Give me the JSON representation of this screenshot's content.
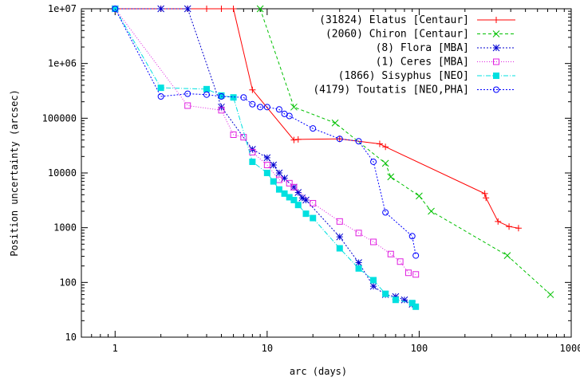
{
  "chart_data": {
    "type": "line",
    "title": "",
    "xlabel": "arc (days)",
    "ylabel": "Position uncertainty (arcsec)",
    "xscale": "log",
    "yscale": "log",
    "xlim": [
      0.6,
      1000
    ],
    "ylim": [
      10,
      10000000
    ],
    "grid": false,
    "legend_position": "top-right",
    "x_ticks": [
      {
        "value": 1,
        "label": "1"
      },
      {
        "value": 10,
        "label": "10"
      },
      {
        "value": 100,
        "label": "100"
      },
      {
        "value": 1000,
        "label": "1000"
      }
    ],
    "y_ticks": [
      {
        "value": 10,
        "label": "10"
      },
      {
        "value": 100,
        "label": "100"
      },
      {
        "value": 1000,
        "label": "1000"
      },
      {
        "value": 10000,
        "label": "10000"
      },
      {
        "value": 100000,
        "label": "100000"
      },
      {
        "value": 1000000,
        "label": "1e+06"
      },
      {
        "value": 10000000,
        "label": "1e+07"
      }
    ],
    "series": [
      {
        "name": "(31824) Elatus [Centaur]",
        "color": "#ff0000",
        "dash": "",
        "marker": "plus",
        "points": [
          [
            1,
            10000000
          ],
          [
            2,
            10000000
          ],
          [
            3,
            10000000
          ],
          [
            4,
            10000000
          ],
          [
            5,
            10000000
          ],
          [
            6,
            10000000
          ],
          [
            8,
            330000
          ],
          [
            15,
            40000
          ],
          [
            16,
            41000
          ],
          [
            30,
            42000
          ],
          [
            55,
            34000
          ],
          [
            60,
            30000
          ],
          [
            270,
            4200
          ],
          [
            275,
            3500
          ],
          [
            330,
            1300
          ],
          [
            390,
            1050
          ],
          [
            450,
            980
          ]
        ]
      },
      {
        "name": "(2060) Chiron [Centaur]",
        "color": "#00c000",
        "dash": "4,3",
        "marker": "cross",
        "points": [
          [
            9,
            10000000
          ],
          [
            15,
            160000
          ],
          [
            28,
            82000
          ],
          [
            60,
            15000
          ],
          [
            65,
            8500
          ],
          [
            100,
            3800
          ],
          [
            120,
            2000
          ],
          [
            380,
            310
          ],
          [
            730,
            60
          ]
        ]
      },
      {
        "name": "(8) Flora [MBA]",
        "color": "#0000d0",
        "dash": "2,2",
        "marker": "star",
        "points": [
          [
            1,
            10000000
          ],
          [
            2,
            10000000
          ],
          [
            3,
            10000000
          ],
          [
            5,
            160000
          ],
          [
            8,
            27000
          ],
          [
            10,
            19000
          ],
          [
            11,
            14000
          ],
          [
            12,
            10000
          ],
          [
            13,
            8000
          ],
          [
            15,
            5500
          ],
          [
            16,
            4400
          ],
          [
            17,
            3500
          ],
          [
            18,
            3200
          ],
          [
            30,
            680
          ],
          [
            40,
            230
          ],
          [
            50,
            85
          ],
          [
            60,
            60
          ],
          [
            70,
            55
          ],
          [
            80,
            48
          ],
          [
            90,
            40
          ]
        ]
      },
      {
        "name": "(1) Ceres [MBA]",
        "color": "#e020e0",
        "dash": "1,2",
        "marker": "box",
        "points": [
          [
            1,
            10000000
          ],
          [
            3,
            170000
          ],
          [
            5,
            140000
          ],
          [
            6,
            50000
          ],
          [
            7,
            45000
          ],
          [
            8,
            24000
          ],
          [
            10,
            14000
          ],
          [
            12,
            7500
          ],
          [
            14,
            6500
          ],
          [
            15,
            5500
          ],
          [
            20,
            2800
          ],
          [
            30,
            1300
          ],
          [
            40,
            800
          ],
          [
            50,
            550
          ],
          [
            65,
            330
          ],
          [
            75,
            240
          ],
          [
            85,
            150
          ],
          [
            95,
            140
          ]
        ]
      },
      {
        "name": "(1866) Sisyphus [NEO]",
        "color": "#00e0e0",
        "dash": "6,2,1,2",
        "marker": "filled-box",
        "points": [
          [
            1,
            10000000
          ],
          [
            2,
            360000
          ],
          [
            4,
            340000
          ],
          [
            5,
            260000
          ],
          [
            6,
            240000
          ],
          [
            8,
            16000
          ],
          [
            10,
            10000
          ],
          [
            11,
            7000
          ],
          [
            12,
            5000
          ],
          [
            13,
            4200
          ],
          [
            14,
            3600
          ],
          [
            15,
            3200
          ],
          [
            16,
            2600
          ],
          [
            18,
            1800
          ],
          [
            20,
            1500
          ],
          [
            30,
            420
          ],
          [
            40,
            180
          ],
          [
            50,
            110
          ],
          [
            60,
            62
          ],
          [
            70,
            48
          ],
          [
            90,
            42
          ],
          [
            95,
            36
          ]
        ]
      },
      {
        "name": "(4179) Toutatis [NEO,PHA]",
        "color": "#0000ff",
        "dash": "2,2",
        "marker": "circle",
        "points": [
          [
            1,
            10000000
          ],
          [
            2,
            250000
          ],
          [
            3,
            280000
          ],
          [
            4,
            270000
          ],
          [
            5,
            250000
          ],
          [
            7,
            240000
          ],
          [
            8,
            180000
          ],
          [
            9,
            160000
          ],
          [
            10,
            160000
          ],
          [
            12,
            145000
          ],
          [
            13,
            120000
          ],
          [
            14,
            110000
          ],
          [
            20,
            65000
          ],
          [
            30,
            42000
          ],
          [
            40,
            38000
          ],
          [
            50,
            16000
          ],
          [
            60,
            1900
          ],
          [
            90,
            700
          ],
          [
            95,
            310
          ]
        ]
      }
    ]
  }
}
